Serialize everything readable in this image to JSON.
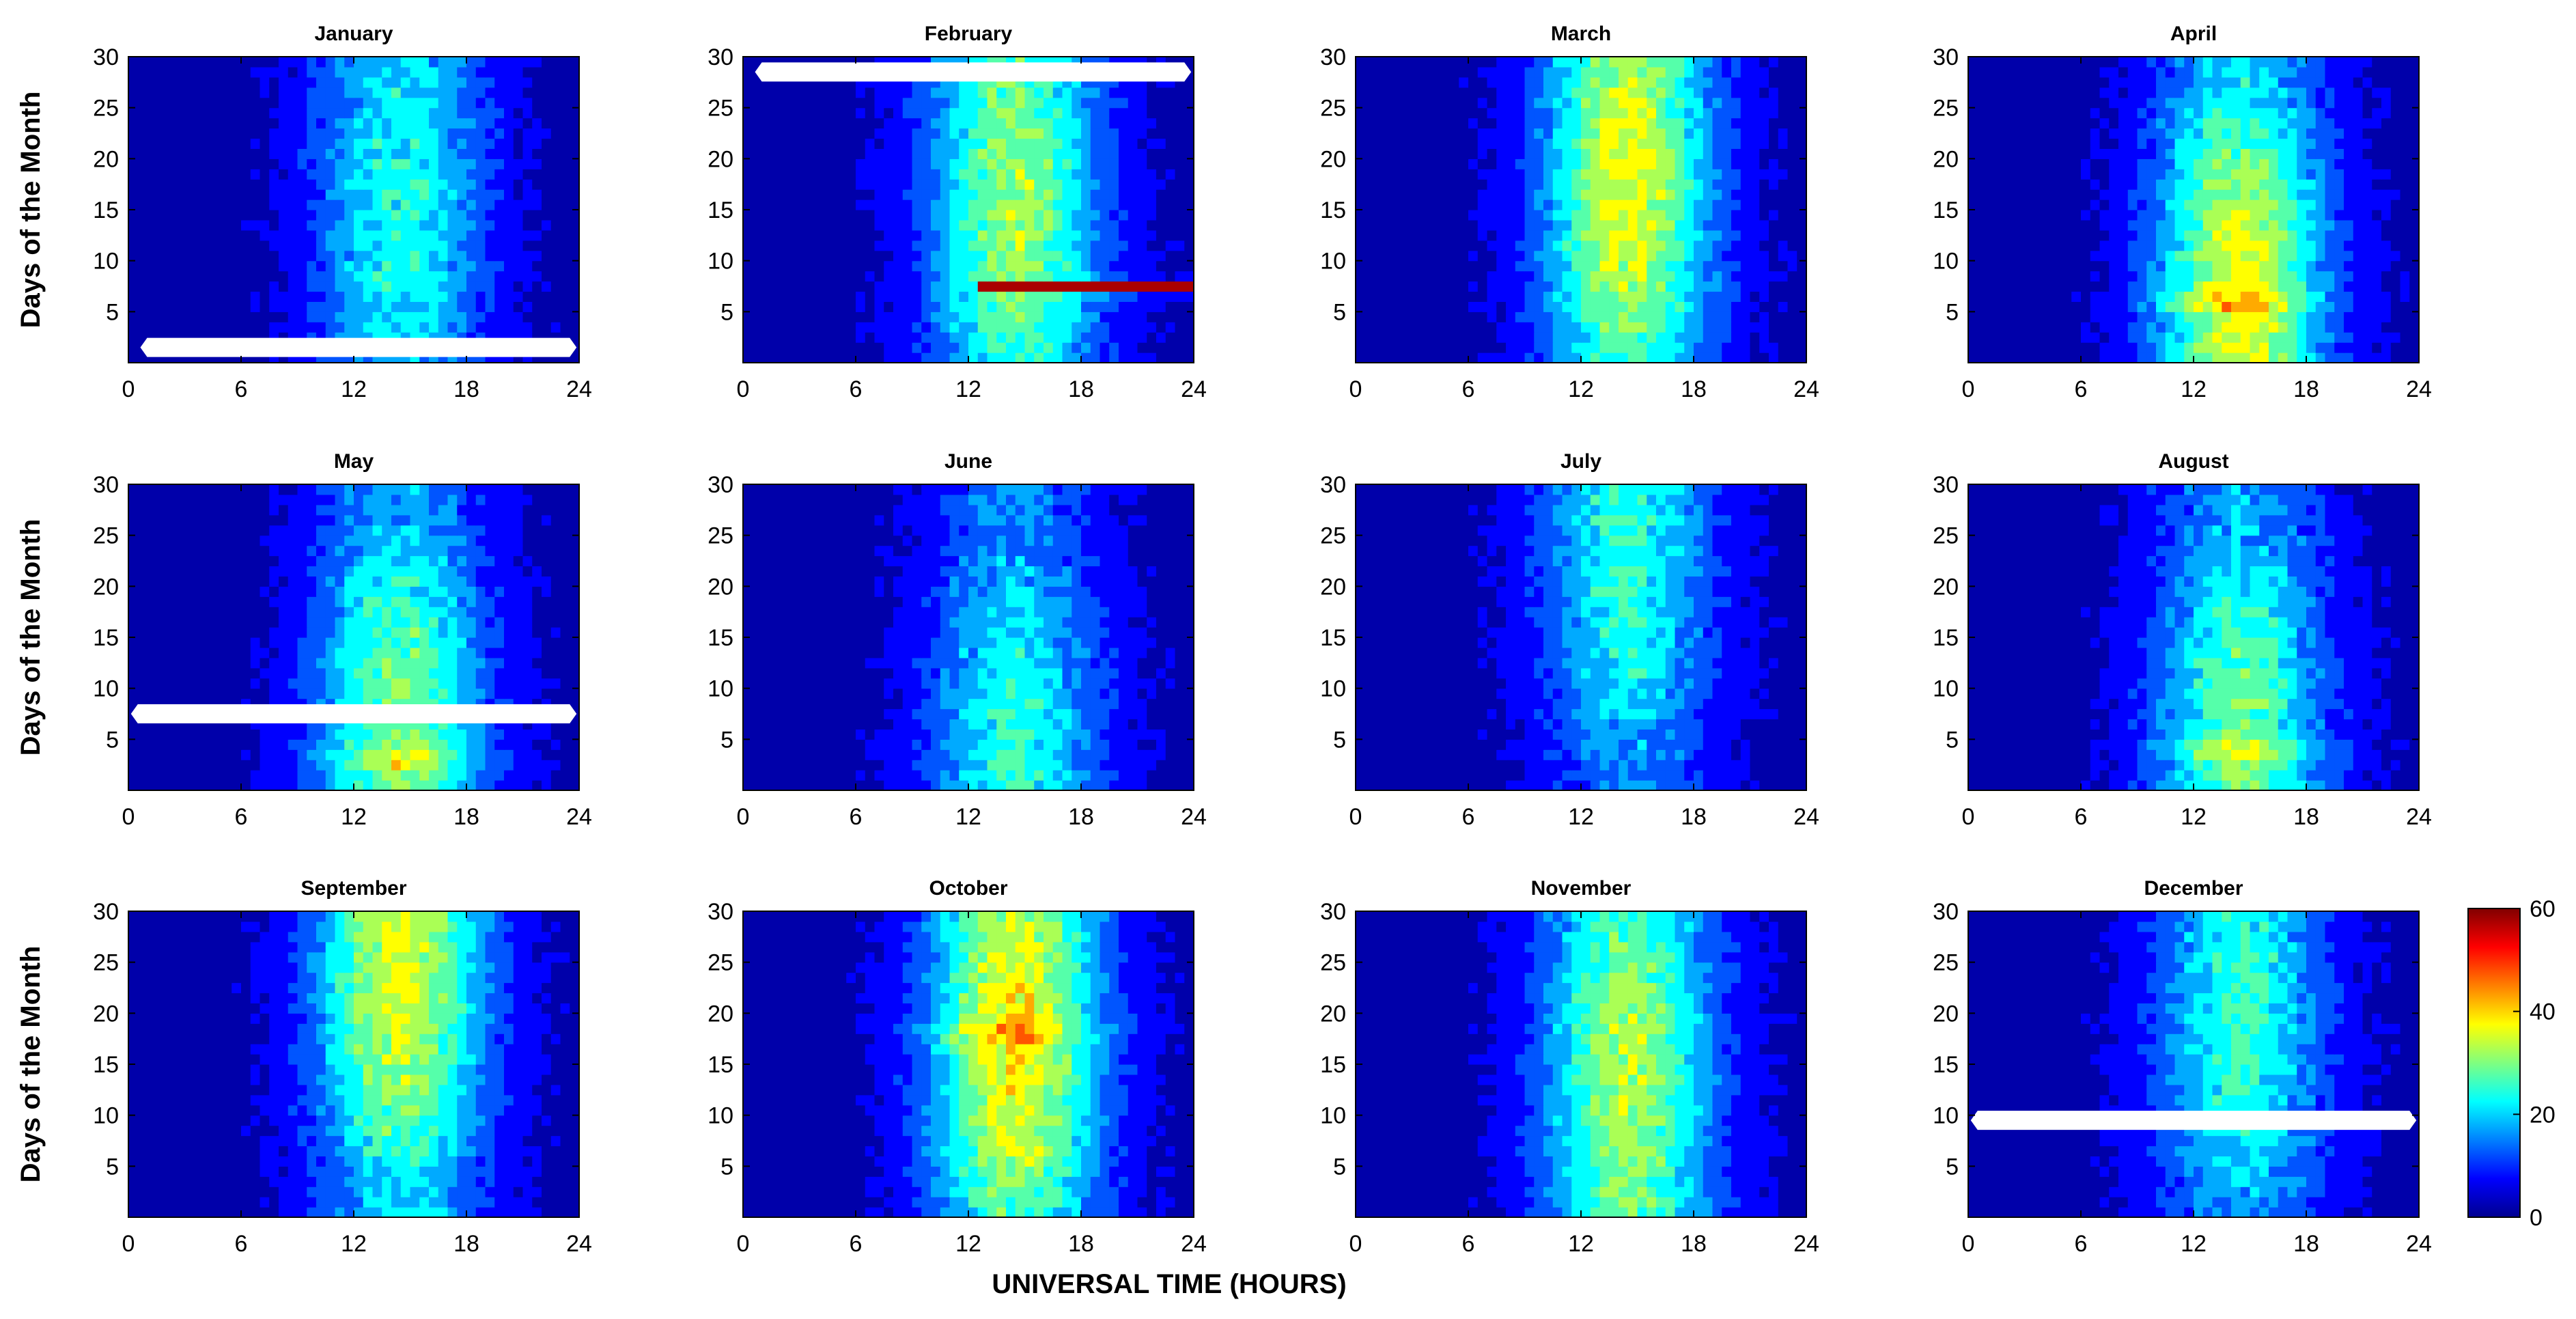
{
  "chart_data": {
    "type": "heatmap",
    "layout": "3 rows x 4 columns of contour panels",
    "xlabel": "UNIVERSAL TIME (HOURS)",
    "ylabel": "Days of the Month",
    "xlim": [
      0,
      24
    ],
    "ylim": [
      0,
      30
    ],
    "x_ticks": [
      "0",
      "6",
      "12",
      "18",
      "24"
    ],
    "y_ticks": [
      "5",
      "10",
      "15",
      "20",
      "25",
      "30"
    ],
    "colorbar": {
      "range": [
        0,
        60
      ],
      "ticks": [
        "0",
        "20",
        "40",
        "60"
      ],
      "colormap": "jet"
    },
    "hours": [
      0,
      1,
      2,
      3,
      4,
      5,
      6,
      7,
      8,
      9,
      10,
      11,
      12,
      13,
      14,
      15,
      16,
      17,
      18,
      19,
      20,
      21,
      22,
      23,
      24
    ],
    "panels": [
      {
        "title": "January",
        "peak": 24,
        "peak_day": 15,
        "pos_days": [],
        "gap_day": 1.5,
        "gap_x": [
          1,
          23.5
        ]
      },
      {
        "title": "February",
        "peak": 32,
        "peak_day": 16,
        "pos_days": [],
        "gap_day": 28.5,
        "gap_x": [
          1,
          23.5
        ],
        "hot_day": 7.5,
        "hot_x": [
          12.5,
          24
        ],
        "hot_value": 60
      },
      {
        "title": "March",
        "peak": 36,
        "peak_day": 18,
        "pos_days": [],
        "gap_day": null
      },
      {
        "title": "April",
        "peak": 36,
        "peak_day": 6,
        "pos_days": [
          6
        ],
        "gap_day": null
      },
      {
        "title": "May",
        "peak": 30,
        "peak_day": 5,
        "pos_days": [
          3
        ],
        "gap_day": 7.5,
        "gap_x": [
          0.5,
          23.5
        ]
      },
      {
        "title": "June",
        "peak": 25,
        "peak_day": 3,
        "pos_days": [],
        "gap_day": null
      },
      {
        "title": "July",
        "peak": 25,
        "peak_day": 24,
        "pos_days": [],
        "gap_day": null
      },
      {
        "title": "August",
        "peak": 29,
        "peak_day": 4,
        "pos_days": [
          4
        ],
        "gap_day": null
      },
      {
        "title": "September",
        "peak": 36,
        "peak_day": 25,
        "pos_days": [],
        "gap_day": null
      },
      {
        "title": "October",
        "peak": 38,
        "peak_day": 18,
        "pos_days": [
          18
        ],
        "gap_day": null
      },
      {
        "title": "November",
        "peak": 33,
        "peak_day": 14,
        "pos_days": [],
        "gap_day": null
      },
      {
        "title": "December",
        "peak": 25,
        "peak_day": 20,
        "pos_days": [],
        "gap_day": 9.5,
        "gap_x": [
          0.5,
          23.5
        ]
      }
    ]
  }
}
